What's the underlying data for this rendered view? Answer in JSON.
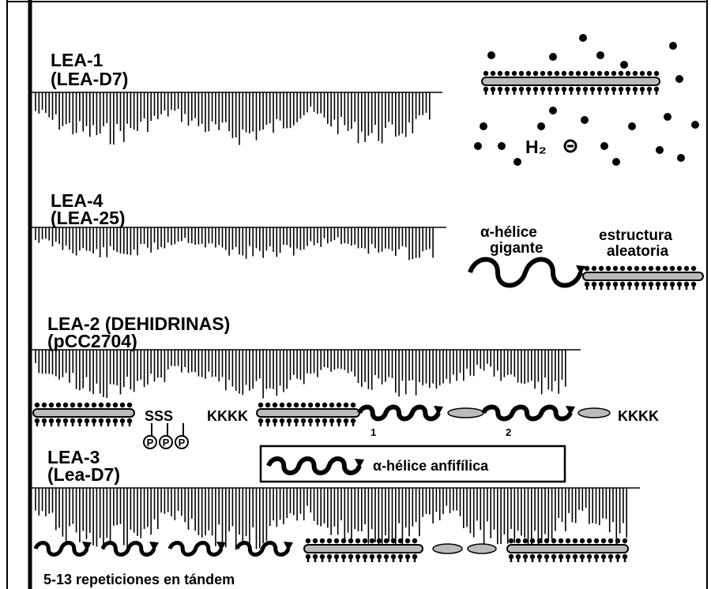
{
  "panels": [
    {
      "title": "LEA-1",
      "subtitle": "(LEA-D7)"
    },
    {
      "title": "LEA-4",
      "subtitle": "(LEA-25)"
    },
    {
      "title": "LEA-2 (DEHIDRINAS)",
      "subtitle": "(pCC2704)"
    },
    {
      "title": "LEA-3",
      "subtitle": "(Lea-D7)"
    }
  ],
  "water_label": "H₂",
  "helix_labels": {
    "giant": [
      "α-hélice",
      "gigante"
    ],
    "random": [
      "estructura",
      "aleatoria"
    ]
  },
  "dehydrin_labels": {
    "serines": "SSS",
    "lysines_left": "KKKK",
    "segment_1": "1",
    "segment_2": "2",
    "lysines_right": "KKKK",
    "phospho": [
      "P",
      "P",
      "P"
    ]
  },
  "legend": "α-hélice anfifílica",
  "repeats": "5-13 repeticiones en tándem"
}
